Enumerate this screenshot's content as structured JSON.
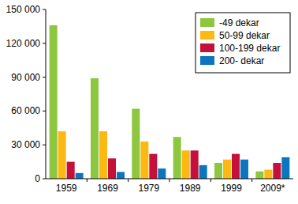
{
  "chart_data": {
    "type": "bar",
    "categories": [
      "1959",
      "1969",
      "1979",
      "1989",
      "1999",
      "2009*"
    ],
    "series": [
      {
        "name": "-49 dekar",
        "color": "#8dc63f",
        "values": [
          136000,
          89000,
          62000,
          37000,
          14000,
          6500
        ]
      },
      {
        "name": "50-99 dekar",
        "color": "#fdb913",
        "values": [
          42000,
          42000,
          33000,
          25000,
          17000,
          8000
        ]
      },
      {
        "name": "100-199 dekar",
        "color": "#c4103a",
        "values": [
          15000,
          18000,
          22000,
          25000,
          22000,
          14000
        ]
      },
      {
        "name": "200- dekar",
        "color": "#0b75bd",
        "values": [
          5000,
          6000,
          9000,
          12000,
          17000,
          19000
        ]
      }
    ],
    "ylim": [
      0,
      150000
    ],
    "yticks": [
      0,
      {
        "value": 30000,
        "label": "30 000"
      },
      {
        "value": 60000,
        "label": "60 000"
      },
      {
        "value": 90000,
        "label": "90 000"
      },
      {
        "value": 120000,
        "label": "120 000"
      },
      {
        "value": 150000,
        "label": "150 000"
      }
    ],
    "grid": false,
    "legend": "top-right"
  }
}
